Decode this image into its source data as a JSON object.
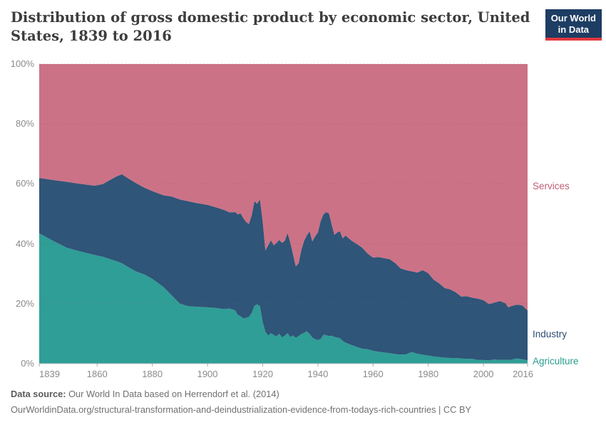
{
  "header": {
    "title_line1": "Distribution of gross domestic product by economic sector, United",
    "title_line2": "States, 1839 to 2016",
    "logo": {
      "line1": "Our World",
      "line2": "in Data",
      "bg_color": "#1d3d63",
      "bar_color": "#e0373f"
    }
  },
  "chart_data": {
    "type": "area",
    "stacked": true,
    "title": "Distribution of gross domestic product by economic sector, United States, 1839 to 2016",
    "xlabel": "",
    "ylabel": "",
    "xlim": [
      1839,
      2016
    ],
    "ylim": [
      0,
      100
    ],
    "grid": true,
    "legend_position": "right-entity-labels",
    "x": [
      1839,
      1844,
      1849,
      1854,
      1859,
      1862,
      1864,
      1867,
      1869,
      1871,
      1874,
      1877,
      1880,
      1884,
      1887,
      1890,
      1893,
      1896,
      1900,
      1903,
      1906,
      1908,
      1910,
      1911,
      1912,
      1913,
      1914,
      1915,
      1916,
      1917,
      1918,
      1919,
      1920,
      1921,
      1922,
      1923,
      1924,
      1925,
      1926,
      1927,
      1928,
      1929,
      1930,
      1931,
      1932,
      1933,
      1934,
      1935,
      1936,
      1937,
      1938,
      1939,
      1940,
      1941,
      1942,
      1943,
      1944,
      1945,
      1946,
      1947,
      1948,
      1949,
      1950,
      1952,
      1954,
      1956,
      1958,
      1960,
      1962,
      1964,
      1966,
      1968,
      1970,
      1972,
      1974,
      1976,
      1978,
      1980,
      1982,
      1984,
      1986,
      1988,
      1990,
      1992,
      1994,
      1996,
      1998,
      2000,
      2002,
      2004,
      2006,
      2008,
      2009,
      2010,
      2012,
      2014,
      2016
    ],
    "series": [
      {
        "name": "Agriculture",
        "color": "#2f9e96",
        "label_color": "#2a9d8f",
        "values": [
          43.5,
          41.0,
          38.7,
          37.4,
          36.3,
          35.7,
          35.1,
          34.2,
          33.5,
          32.4,
          30.8,
          29.8,
          28.3,
          25.6,
          22.8,
          20.0,
          19.2,
          19.0,
          18.8,
          18.6,
          18.2,
          18.4,
          17.8,
          16.3,
          15.8,
          15.1,
          15.3,
          15.6,
          16.9,
          19.3,
          19.8,
          19.2,
          13.8,
          10.6,
          9.4,
          10.2,
          9.6,
          9.1,
          10.0,
          8.7,
          9.3,
          10.2,
          8.9,
          9.4,
          8.6,
          9.2,
          9.9,
          10.3,
          10.8,
          9.9,
          8.7,
          8.2,
          7.9,
          8.2,
          9.7,
          9.5,
          9.2,
          9.3,
          8.9,
          8.7,
          8.5,
          7.6,
          7.0,
          6.3,
          5.6,
          5.0,
          4.8,
          4.3,
          4.0,
          3.7,
          3.5,
          3.2,
          3.0,
          3.1,
          3.9,
          3.3,
          3.0,
          2.7,
          2.4,
          2.2,
          2.0,
          1.9,
          1.9,
          1.7,
          1.6,
          1.6,
          1.2,
          1.2,
          1.1,
          1.4,
          1.2,
          1.3,
          1.2,
          1.3,
          1.7,
          1.5,
          1.1
        ]
      },
      {
        "name": "Industry",
        "color": "#2f5578",
        "label_color": "#2d4b6f",
        "values": [
          18.5,
          20.3,
          22.0,
          22.6,
          23.1,
          24.2,
          25.9,
          28.3,
          29.7,
          29.6,
          29.5,
          29.0,
          29.3,
          30.6,
          33.0,
          34.8,
          35.0,
          34.6,
          34.2,
          33.6,
          33.1,
          32.1,
          32.8,
          33.5,
          34.4,
          33.4,
          32.0,
          31.0,
          32.6,
          34.9,
          33.6,
          35.7,
          33.7,
          27.2,
          30.1,
          31.0,
          29.9,
          31.2,
          31.3,
          31.6,
          31.7,
          33.4,
          31.6,
          27.1,
          23.9,
          24.3,
          28.1,
          30.7,
          32.0,
          34.3,
          32.1,
          34.3,
          35.9,
          39.3,
          40.1,
          41.1,
          41.0,
          37.2,
          34.1,
          35.1,
          35.7,
          34.2,
          35.8,
          34.9,
          34.4,
          33.8,
          32.0,
          31.1,
          31.6,
          31.5,
          31.4,
          30.4,
          28.8,
          28.1,
          26.9,
          27.1,
          28.2,
          27.5,
          25.6,
          24.6,
          23.2,
          22.9,
          21.9,
          20.7,
          20.9,
          20.4,
          20.5,
          20.0,
          18.8,
          19.0,
          19.7,
          18.9,
          17.6,
          17.9,
          18.0,
          18.0,
          16.7
        ]
      },
      {
        "name": "Services",
        "color": "#cc7286",
        "label_color": "#c25e77",
        "values": [
          38.0,
          38.7,
          39.3,
          40.0,
          40.6,
          40.1,
          39.0,
          37.5,
          36.8,
          38.0,
          39.7,
          41.2,
          42.4,
          43.8,
          44.2,
          45.2,
          45.8,
          46.4,
          47.0,
          47.8,
          48.7,
          49.5,
          49.4,
          50.2,
          49.8,
          51.5,
          52.7,
          53.4,
          50.5,
          45.8,
          46.6,
          45.1,
          52.5,
          62.2,
          60.5,
          58.8,
          60.5,
          59.7,
          58.7,
          59.7,
          59.0,
          56.4,
          59.5,
          63.5,
          67.5,
          66.5,
          62.0,
          59.0,
          57.2,
          55.8,
          59.2,
          57.5,
          56.2,
          52.5,
          50.2,
          49.4,
          49.8,
          53.5,
          57.0,
          56.2,
          55.8,
          58.2,
          57.2,
          58.8,
          60.0,
          61.2,
          63.2,
          64.6,
          64.4,
          64.8,
          65.1,
          66.4,
          68.2,
          68.8,
          69.2,
          69.6,
          68.8,
          69.8,
          72.0,
          73.2,
          74.8,
          75.2,
          76.2,
          77.6,
          77.5,
          78.0,
          78.3,
          78.8,
          80.1,
          79.6,
          79.1,
          79.8,
          81.2,
          80.8,
          80.3,
          80.5,
          82.2
        ]
      }
    ],
    "yticks": [
      {
        "value": 0,
        "label": "0%"
      },
      {
        "value": 20,
        "label": "20%"
      },
      {
        "value": 40,
        "label": "40%"
      },
      {
        "value": 60,
        "label": "60%"
      },
      {
        "value": 80,
        "label": "80%"
      },
      {
        "value": 100,
        "label": "100%"
      }
    ],
    "xticks": [
      {
        "value": 1839,
        "label": "1839"
      },
      {
        "value": 1860,
        "label": "1860"
      },
      {
        "value": 1880,
        "label": "1880"
      },
      {
        "value": 1900,
        "label": "1900"
      },
      {
        "value": 1920,
        "label": "1920"
      },
      {
        "value": 1940,
        "label": "1940"
      },
      {
        "value": 1960,
        "label": "1960"
      },
      {
        "value": 1980,
        "label": "1980"
      },
      {
        "value": 2000,
        "label": "2000"
      },
      {
        "value": 2016,
        "label": "2016"
      }
    ]
  },
  "footer": {
    "source_label": "Data source:",
    "source_text": " Our World In Data based on Herrendorf et al. (2014)",
    "url_text": "OurWorldinData.org/structural-transformation-and-deindustrialization-evidence-from-todays-rich-countries | CC BY"
  }
}
